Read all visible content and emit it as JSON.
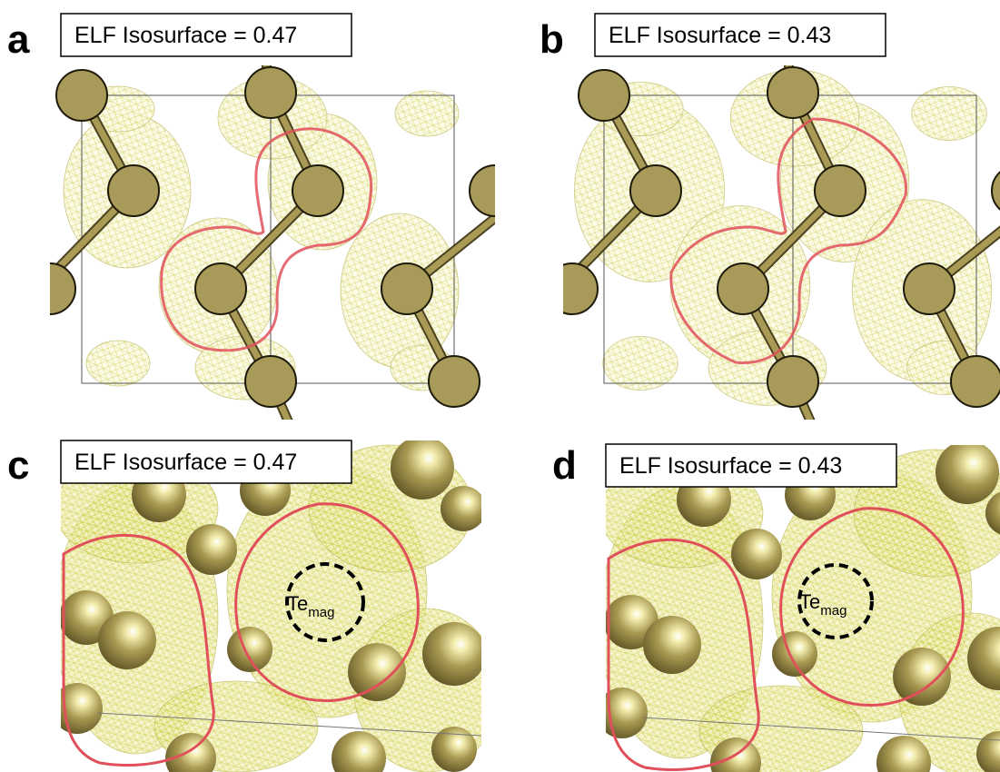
{
  "panels": [
    {
      "letter": "a",
      "label": "ELF Isosurface = 0.47"
    },
    {
      "letter": "b",
      "label": "ELF Isosurface = 0.43"
    },
    {
      "letter": "c",
      "label": "ELF Isosurface = 0.47",
      "atom_label": {
        "base": "Te",
        "sub": "mag"
      }
    },
    {
      "letter": "d",
      "label": "ELF Isosurface = 0.43",
      "atom_label": {
        "base": "Te",
        "sub": "mag"
      }
    }
  ]
}
